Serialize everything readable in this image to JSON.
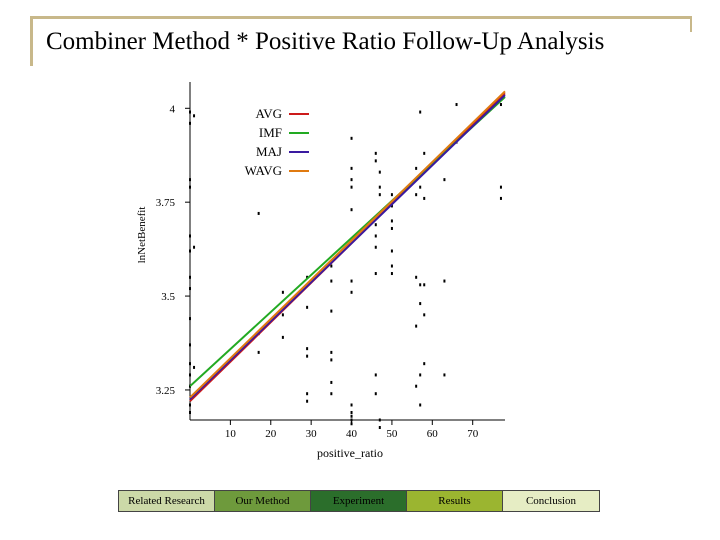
{
  "slide": {
    "title": "Combiner Method * Positive Ratio Follow-Up Analysis"
  },
  "nav": {
    "items": [
      {
        "label": "Related Research",
        "color": "#ccd9a8"
      },
      {
        "label": "Our Method",
        "color": "#6e9a3c"
      },
      {
        "label": "Experiment",
        "color": "#2b6e2b"
      },
      {
        "label": "Results",
        "color": "#9bb530"
      },
      {
        "label": "Conclusion",
        "color": "#e6edc4"
      }
    ]
  },
  "chart_data": {
    "type": "line",
    "xlabel": "positive_ratio",
    "ylabel": "lnNetBenefit",
    "xlim": [
      0,
      78
    ],
    "ylim": [
      3.17,
      4.07
    ],
    "xticks": [
      10,
      20,
      30,
      40,
      50,
      60,
      70
    ],
    "yticks": [
      3.25,
      3.5,
      3.75,
      4
    ],
    "ytick_labels": [
      "3.25",
      "3.5",
      "3.75",
      "4"
    ],
    "grid": false,
    "legend_position": "top-left",
    "series": [
      {
        "name": "AVG",
        "color": "#cc1a1a",
        "x": [
          0,
          78
        ],
        "y": [
          3.22,
          4.04
        ]
      },
      {
        "name": "IMF",
        "color": "#22aa22",
        "x": [
          0,
          78
        ],
        "y": [
          3.26,
          4.03
        ]
      },
      {
        "name": "MAJ",
        "color": "#3a1aa0",
        "x": [
          0,
          78
        ],
        "y": [
          3.225,
          4.035
        ]
      },
      {
        "name": "WAVG",
        "color": "#e07a10",
        "x": [
          0,
          78
        ],
        "y": [
          3.23,
          4.045
        ]
      }
    ],
    "scatter": [
      [
        0,
        3.19
      ],
      [
        0,
        3.21
      ],
      [
        0,
        3.26
      ],
      [
        0,
        3.29
      ],
      [
        0,
        3.32
      ],
      [
        0,
        3.37
      ],
      [
        0,
        3.44
      ],
      [
        0,
        3.52
      ],
      [
        0,
        3.55
      ],
      [
        0,
        3.62
      ],
      [
        0,
        3.66
      ],
      [
        0,
        3.79
      ],
      [
        0,
        3.81
      ],
      [
        0,
        3.96
      ],
      [
        0,
        3.99
      ],
      [
        1,
        3.31
      ],
      [
        1,
        3.63
      ],
      [
        1,
        3.98
      ],
      [
        17,
        3.35
      ],
      [
        17,
        3.4
      ],
      [
        17,
        3.72
      ],
      [
        23,
        3.39
      ],
      [
        23,
        3.45
      ],
      [
        23,
        3.51
      ],
      [
        29,
        3.47
      ],
      [
        29,
        3.55
      ],
      [
        29,
        3.22
      ],
      [
        29,
        3.24
      ],
      [
        29,
        3.34
      ],
      [
        29,
        3.36
      ],
      [
        35,
        3.54
      ],
      [
        35,
        3.58
      ],
      [
        35,
        3.24
      ],
      [
        35,
        3.27
      ],
      [
        35,
        3.33
      ],
      [
        35,
        3.35
      ],
      [
        35,
        3.46
      ],
      [
        40,
        3.16
      ],
      [
        40,
        3.17
      ],
      [
        40,
        3.18
      ],
      [
        40,
        3.19
      ],
      [
        40,
        3.21
      ],
      [
        40,
        3.51
      ],
      [
        40,
        3.54
      ],
      [
        40,
        3.73
      ],
      [
        40,
        3.79
      ],
      [
        40,
        3.81
      ],
      [
        40,
        3.84
      ],
      [
        40,
        3.92
      ],
      [
        46,
        3.24
      ],
      [
        46,
        3.29
      ],
      [
        46,
        3.56
      ],
      [
        46,
        3.63
      ],
      [
        46,
        3.66
      ],
      [
        46,
        3.69
      ],
      [
        46,
        3.86
      ],
      [
        46,
        3.88
      ],
      [
        47,
        3.15
      ],
      [
        47,
        3.17
      ],
      [
        47,
        3.77
      ],
      [
        47,
        3.79
      ],
      [
        47,
        3.83
      ],
      [
        50,
        3.56
      ],
      [
        50,
        3.58
      ],
      [
        50,
        3.62
      ],
      [
        50,
        3.68
      ],
      [
        50,
        3.7
      ],
      [
        50,
        3.74
      ],
      [
        50,
        3.77
      ],
      [
        56,
        3.26
      ],
      [
        56,
        3.42
      ],
      [
        56,
        3.55
      ],
      [
        56,
        3.77
      ],
      [
        56,
        3.84
      ],
      [
        57,
        3.21
      ],
      [
        57,
        3.29
      ],
      [
        57,
        3.48
      ],
      [
        57,
        3.53
      ],
      [
        57,
        3.79
      ],
      [
        57,
        3.99
      ],
      [
        58,
        3.32
      ],
      [
        58,
        3.45
      ],
      [
        58,
        3.53
      ],
      [
        58,
        3.76
      ],
      [
        58,
        3.88
      ],
      [
        63,
        3.29
      ],
      [
        63,
        3.54
      ],
      [
        63,
        3.81
      ],
      [
        66,
        3.91
      ],
      [
        66,
        4.01
      ],
      [
        77,
        3.76
      ],
      [
        77,
        3.79
      ],
      [
        77,
        4.01
      ]
    ]
  }
}
